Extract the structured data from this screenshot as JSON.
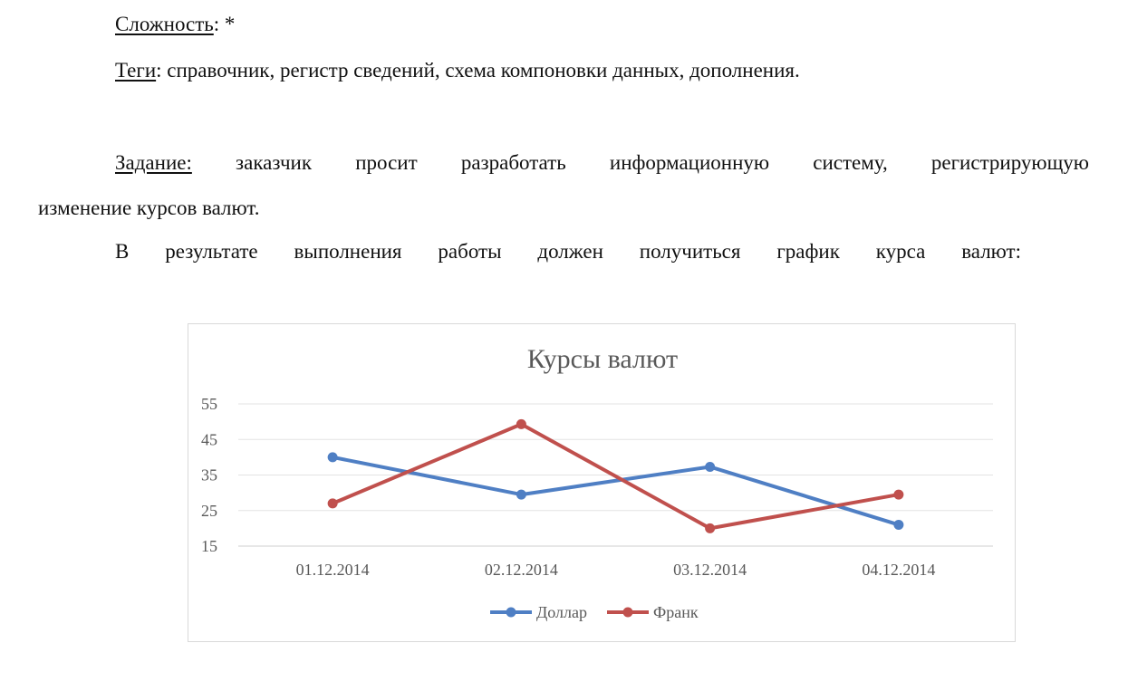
{
  "doc": {
    "complexity_label": "Сложность",
    "complexity_value": ": *",
    "tags_label": "Теги",
    "tags_value": ": справочник, регистр сведений, схема компоновки данных, дополнения.",
    "task_label": "Задание:",
    "task_text_1": " заказчик просит разработать информационную систему, регистрирующую",
    "task_text_2": "изменение курсов валют.",
    "result_text": "В результате выполнения работы должен получиться график курса валют:"
  },
  "chart_data": {
    "type": "line",
    "title": "Курсы валют",
    "categories": [
      "01.12.2014",
      "02.12.2014",
      "03.12.2014",
      "04.12.2014"
    ],
    "ylim": [
      15,
      55
    ],
    "yticks": [
      15,
      25,
      35,
      45,
      55
    ],
    "grid": true,
    "legend_position": "bottom",
    "series": [
      {
        "name": "Доллар",
        "color": "#4f7fc4",
        "values": [
          40,
          29.5,
          37.3,
          21
        ]
      },
      {
        "name": "Франк",
        "color": "#c0504d",
        "values": [
          27,
          49.3,
          20,
          29.5
        ]
      }
    ]
  }
}
